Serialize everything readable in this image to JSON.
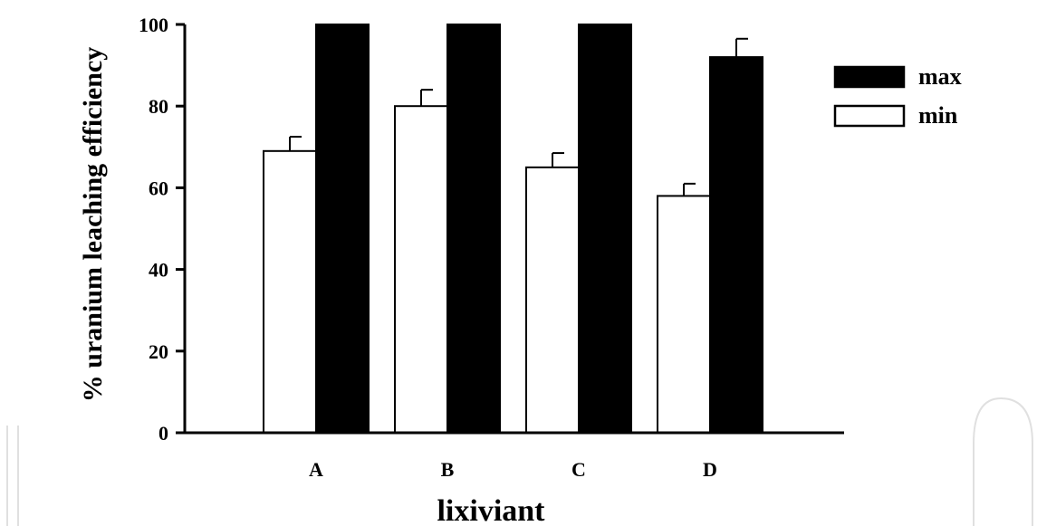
{
  "chart_data": {
    "type": "bar",
    "categories": [
      "A",
      "B",
      "C",
      "D"
    ],
    "series": [
      {
        "name": "min",
        "values": [
          69,
          80,
          65,
          58
        ],
        "errors": [
          3.5,
          4,
          3.5,
          3
        ],
        "fill": "#ffffff"
      },
      {
        "name": "max",
        "values": [
          100,
          100,
          100,
          92
        ],
        "errors": [
          0,
          0,
          0,
          4.5
        ],
        "fill": "#000000"
      }
    ],
    "xlabel": "lixiviant",
    "ylabel": "% uranium leaching efficiency",
    "ylim": [
      0,
      100
    ],
    "yticks": [
      0,
      20,
      40,
      60,
      80,
      100
    ],
    "grid": false,
    "legend": {
      "placement": "top-right",
      "entries": [
        {
          "label": "max",
          "fill": "#000000"
        },
        {
          "label": "min",
          "fill": "#ffffff"
        }
      ]
    }
  }
}
